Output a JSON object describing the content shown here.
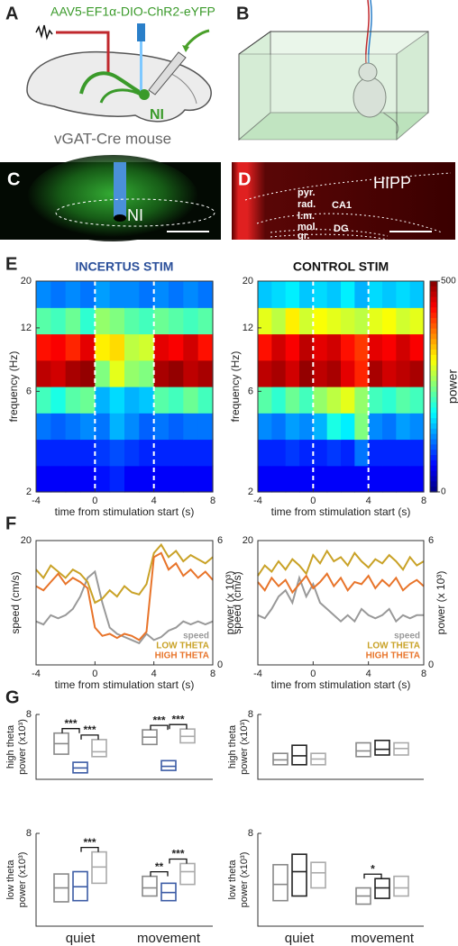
{
  "panels": {
    "A": {
      "label": "A",
      "virus": "AAV5-EF1α-DIO-ChR2-eYFP",
      "region": "NI",
      "caption": "vGAT-Cre mouse"
    },
    "B": {
      "label": "B"
    },
    "C": {
      "label": "C",
      "region": "NI"
    },
    "D": {
      "label": "D",
      "region": "HIPP",
      "layers": [
        "pyr.",
        "rad.",
        "l.m.",
        "mol.",
        "gr."
      ],
      "areas": [
        "CA1",
        "DG"
      ]
    },
    "E": {
      "label": "E"
    },
    "F": {
      "label": "F"
    },
    "G": {
      "label": "G"
    }
  },
  "chart_data": [
    {
      "type": "heatmap",
      "title": "INCERTUS STIM",
      "title_color": "#2a4f9a",
      "xlabel": "time from stimulation start (s)",
      "ylabel": "frequency (Hz)",
      "xlim": [
        -4,
        8
      ],
      "xticks": [
        -4,
        0,
        4,
        8
      ],
      "ylim": [
        2,
        20
      ],
      "yticks": [
        2,
        6,
        12,
        20
      ],
      "log_y": true,
      "zlim": [
        0,
        500
      ],
      "markers": [
        0,
        4
      ],
      "z": [
        [
          60,
          60,
          60,
          60,
          70,
          80,
          60,
          60,
          60,
          60,
          60,
          60
        ],
        [
          80,
          80,
          80,
          80,
          90,
          100,
          90,
          80,
          80,
          80,
          80,
          80
        ],
        [
          120,
          110,
          120,
          130,
          120,
          150,
          130,
          110,
          120,
          110,
          120,
          120
        ],
        [
          220,
          200,
          230,
          240,
          150,
          170,
          150,
          160,
          230,
          220,
          240,
          220
        ],
        [
          470,
          460,
          480,
          490,
          250,
          300,
          260,
          250,
          480,
          490,
          470,
          480
        ],
        [
          430,
          440,
          420,
          450,
          320,
          330,
          280,
          290,
          450,
          440,
          460,
          430
        ],
        [
          230,
          220,
          240,
          210,
          260,
          250,
          230,
          220,
          240,
          230,
          220,
          230
        ],
        [
          130,
          120,
          130,
          120,
          140,
          130,
          130,
          120,
          130,
          120,
          130,
          120
        ]
      ]
    },
    {
      "type": "heatmap",
      "title": "CONTROL STIM",
      "title_color": "#111111",
      "xlabel": "time from stimulation start (s)",
      "ylabel": "frequency (Hz)",
      "xlim": [
        -4,
        8
      ],
      "xticks": [
        -4,
        0,
        4,
        8
      ],
      "ylim": [
        2,
        20
      ],
      "yticks": [
        2,
        6,
        12,
        20
      ],
      "log_y": true,
      "zlim": [
        0,
        500
      ],
      "markers": [
        0,
        4
      ],
      "colorbar": {
        "label": "power",
        "ticks": [
          0,
          500
        ]
      },
      "z": [
        [
          60,
          60,
          60,
          60,
          60,
          60,
          60,
          60,
          60,
          60,
          60,
          60
        ],
        [
          80,
          80,
          90,
          80,
          80,
          90,
          80,
          120,
          80,
          80,
          80,
          80
        ],
        [
          130,
          120,
          140,
          130,
          150,
          200,
          180,
          250,
          130,
          120,
          140,
          130
        ],
        [
          230,
          210,
          240,
          220,
          260,
          280,
          300,
          260,
          220,
          210,
          230,
          220
        ],
        [
          470,
          480,
          460,
          490,
          470,
          480,
          450,
          420,
          480,
          460,
          470,
          480
        ],
        [
          430,
          460,
          440,
          470,
          450,
          460,
          430,
          410,
          450,
          440,
          460,
          440
        ],
        [
          300,
          280,
          320,
          290,
          310,
          300,
          290,
          280,
          300,
          310,
          290,
          300
        ],
        [
          160,
          170,
          180,
          160,
          170,
          160,
          180,
          150,
          170,
          160,
          170,
          160
        ]
      ]
    },
    {
      "type": "line",
      "xlabel": "time from stimulation start (s)",
      "ylabel": "speed (cm/s)",
      "y2label": "power (x 10³)",
      "xlim": [
        -4,
        8
      ],
      "xticks": [
        -4,
        0,
        4,
        8
      ],
      "ylim": [
        0,
        20
      ],
      "yticks": [
        20
      ],
      "y2lim": [
        0,
        6
      ],
      "y2ticks": [
        0,
        6
      ],
      "legend": "lower right",
      "x": [
        -4,
        -3.5,
        -3,
        -2.5,
        -2,
        -1.5,
        -1,
        -0.5,
        0,
        0.5,
        1,
        1.5,
        2,
        2.5,
        3,
        3.5,
        4,
        4.5,
        5,
        5.5,
        6,
        6.5,
        7,
        7.5,
        8
      ],
      "series": [
        {
          "name": "speed",
          "color": "#999999",
          "values": [
            7,
            6.5,
            8,
            7.5,
            8,
            9,
            11,
            14,
            15,
            10,
            6,
            5,
            4.5,
            4,
            3.5,
            5,
            4,
            4.5,
            5.5,
            6,
            7,
            6.5,
            7,
            6.5,
            7
          ]
        },
        {
          "name": "LOW THETA",
          "color": "#c9a227",
          "axis": "y2",
          "values": [
            4.6,
            4.2,
            4.8,
            4.5,
            4.2,
            4.6,
            4.4,
            4.0,
            3.0,
            3.2,
            3.6,
            3.3,
            3.8,
            3.5,
            3.4,
            3.9,
            5.4,
            5.8,
            5.2,
            5.5,
            5.0,
            5.3,
            5.1,
            4.9,
            5.2
          ]
        },
        {
          "name": "HIGH THETA",
          "color": "#e8742a",
          "axis": "y2",
          "values": [
            3.8,
            3.6,
            4.0,
            4.4,
            3.9,
            4.2,
            4.0,
            3.7,
            1.8,
            1.4,
            1.5,
            1.3,
            1.5,
            1.4,
            1.2,
            1.6,
            5.2,
            5.4,
            4.6,
            4.9,
            4.3,
            4.6,
            4.2,
            4.5,
            4.1
          ]
        }
      ]
    },
    {
      "type": "line",
      "xlabel": "time from stimulation start (s)",
      "ylabel": "speed (cm/s)",
      "y2label": "power (x 10³)",
      "xlim": [
        -4,
        8
      ],
      "xticks": [
        -4,
        0,
        4,
        8
      ],
      "ylim": [
        0,
        20
      ],
      "yticks": [
        20
      ],
      "y2lim": [
        0,
        6
      ],
      "y2ticks": [
        0,
        6
      ],
      "legend": "lower right",
      "x": [
        -4,
        -3.5,
        -3,
        -2.5,
        -2,
        -1.5,
        -1,
        -0.5,
        0,
        0.5,
        1,
        1.5,
        2,
        2.5,
        3,
        3.5,
        4,
        4.5,
        5,
        5.5,
        6,
        6.5,
        7,
        7.5,
        8
      ],
      "series": [
        {
          "name": "speed",
          "color": "#999999",
          "values": [
            8,
            7.5,
            9,
            11,
            12,
            10,
            14,
            11,
            13,
            10,
            9,
            8,
            7,
            8,
            7,
            9,
            8,
            7.5,
            8,
            9,
            7,
            8,
            7.5,
            8,
            8
          ]
        },
        {
          "name": "LOW THETA",
          "color": "#c9a227",
          "axis": "y2",
          "values": [
            4.3,
            4.8,
            4.5,
            5.0,
            4.6,
            5.1,
            4.8,
            4.4,
            5.3,
            4.9,
            5.5,
            5.0,
            5.2,
            4.8,
            5.4,
            5.0,
            4.7,
            5.1,
            4.9,
            5.3,
            5.0,
            4.6,
            5.2,
            4.8,
            5.0
          ]
        },
        {
          "name": "HIGH THETA",
          "color": "#e8742a",
          "axis": "y2",
          "values": [
            4.0,
            3.6,
            4.2,
            3.8,
            4.1,
            3.5,
            3.9,
            4.3,
            3.7,
            4.0,
            4.4,
            3.8,
            4.2,
            3.6,
            4.0,
            3.9,
            4.3,
            3.7,
            4.1,
            3.8,
            4.2,
            3.6,
            3.9,
            4.1,
            3.8
          ]
        }
      ]
    },
    {
      "type": "box",
      "ylabel": [
        "high theta",
        "power (x10³)"
      ],
      "ylim": [
        0,
        8
      ],
      "yticks": [
        8
      ],
      "series": [
        {
          "color": "#888888",
          "q1": [
            3.1,
            4.3
          ],
          "median": [
            4.4,
            5.2
          ],
          "q3": [
            5.7,
            6.1
          ]
        },
        {
          "color": "#3b5ba5",
          "q1": [
            0.8,
            1.1
          ],
          "median": [
            1.4,
            1.6
          ],
          "q3": [
            2.1,
            2.3
          ]
        },
        {
          "color": "#aaaaaa",
          "q1": [
            2.8,
            4.5
          ],
          "median": [
            3.4,
            5.3
          ],
          "q3": [
            4.9,
            6.2
          ]
        }
      ],
      "brackets": [
        {
          "label": "***",
          "category": 0,
          "between": [
            0,
            1
          ]
        },
        {
          "label": "***",
          "category": 0,
          "between": [
            1,
            2
          ]
        },
        {
          "label": "***",
          "category": 1,
          "between": [
            0,
            1
          ]
        },
        {
          "label": "***",
          "category": 1,
          "between": [
            1,
            2
          ]
        }
      ]
    },
    {
      "type": "box",
      "ylabel": [
        "high theta",
        "power (x10³)"
      ],
      "ylim": [
        0,
        8
      ],
      "yticks": [
        8
      ],
      "series": [
        {
          "color": "#888888",
          "q1": [
            1.8,
            2.8
          ],
          "median": [
            2.4,
            3.5
          ],
          "q3": [
            3.2,
            4.5
          ]
        },
        {
          "color": "#222222",
          "q1": [
            1.8,
            3.0
          ],
          "median": [
            2.9,
            3.7
          ],
          "q3": [
            4.2,
            4.8
          ]
        },
        {
          "color": "#aaaaaa",
          "q1": [
            1.8,
            3.0
          ],
          "median": [
            2.5,
            3.8
          ],
          "q3": [
            3.2,
            4.5
          ]
        }
      ]
    },
    {
      "type": "box",
      "ylabel": [
        "low theta",
        "power (x10³)"
      ],
      "ylim": [
        0,
        8
      ],
      "yticks": [
        8
      ],
      "categories": [
        "quiet",
        "movement"
      ],
      "series": [
        {
          "color": "#888888",
          "q1": [
            2.1,
            2.6
          ],
          "median": [
            3.3,
            3.3
          ],
          "q3": [
            4.5,
            4.3
          ]
        },
        {
          "color": "#3b5ba5",
          "q1": [
            2.2,
            2.2
          ],
          "median": [
            3.4,
            2.9
          ],
          "q3": [
            4.7,
            3.7
          ]
        },
        {
          "color": "#aaaaaa",
          "q1": [
            3.7,
            3.6
          ],
          "median": [
            5.1,
            4.7
          ],
          "q3": [
            6.4,
            5.4
          ]
        }
      ],
      "brackets": [
        {
          "label": "***",
          "category": 0,
          "between": [
            1,
            2
          ]
        },
        {
          "label": "**",
          "category": 1,
          "between": [
            0,
            1
          ]
        },
        {
          "label": "***",
          "category": 1,
          "between": [
            1,
            2
          ]
        }
      ]
    },
    {
      "type": "box",
      "ylabel": [
        "low theta",
        "power (x10³)"
      ],
      "ylim": [
        0,
        8
      ],
      "yticks": [
        8
      ],
      "categories": [
        "quiet",
        "movement"
      ],
      "series": [
        {
          "color": "#888888",
          "q1": [
            2.2,
            1.9
          ],
          "median": [
            3.6,
            2.6
          ],
          "q3": [
            5.3,
            3.3
          ]
        },
        {
          "color": "#222222",
          "q1": [
            2.6,
            2.4
          ],
          "median": [
            4.7,
            3.3
          ],
          "q3": [
            6.2,
            4.1
          ]
        },
        {
          "color": "#aaaaaa",
          "q1": [
            3.3,
            2.6
          ],
          "median": [
            4.6,
            3.3
          ],
          "q3": [
            5.5,
            4.3
          ]
        }
      ],
      "brackets": [
        {
          "label": "*",
          "category": 1,
          "between": [
            0,
            1
          ]
        }
      ]
    }
  ]
}
